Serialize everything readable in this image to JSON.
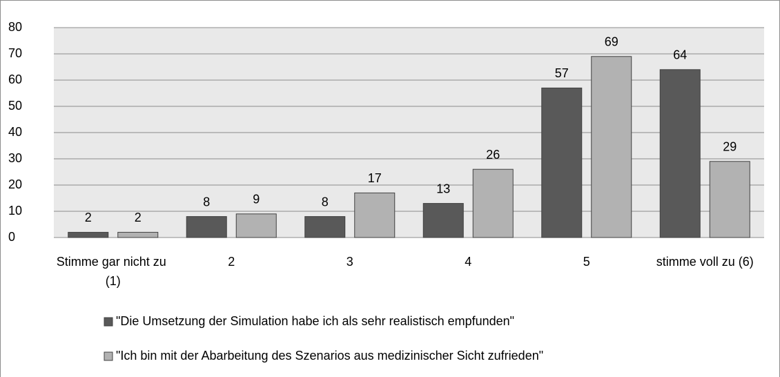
{
  "chart_data": {
    "type": "bar",
    "categories": [
      "Stimme gar nicht zu (1)",
      "2",
      "3",
      "4",
      "5",
      "stimme voll zu (6)"
    ],
    "series": [
      {
        "name": "\"Die Umsetzung der Simulation habe ich als sehr realistisch empfunden\"",
        "color": "#595959",
        "values": [
          2,
          8,
          8,
          13,
          57,
          64
        ]
      },
      {
        "name": "\"Ich bin mit der Abarbeitung des Szenarios aus medizinischer Sicht zufrieden\"",
        "color": "#b2b2b2",
        "values": [
          2,
          9,
          17,
          26,
          69,
          29
        ]
      }
    ],
    "ylim": [
      0,
      80
    ],
    "yticks": [
      0,
      10,
      20,
      30,
      40,
      50,
      60,
      70,
      80
    ],
    "grid": true,
    "legend": "bottom"
  }
}
